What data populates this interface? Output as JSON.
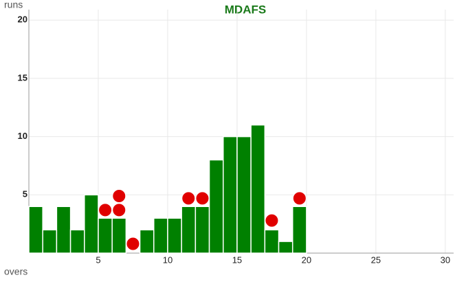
{
  "chart_data": {
    "type": "histogram",
    "title": "MDAFS",
    "y_label": "runs",
    "x_label": "overs",
    "bins": [
      0,
      1,
      2,
      3,
      4,
      5,
      6,
      7,
      8,
      9,
      10,
      11,
      12,
      13,
      14,
      15,
      16,
      17,
      18,
      19,
      20
    ],
    "values": [
      4,
      2,
      4,
      2,
      5,
      3,
      3,
      0,
      2,
      3,
      3,
      4,
      4,
      8,
      10,
      10,
      11,
      2,
      1,
      4
    ],
    "color": "#008000",
    "wickets": {
      "color": "#e00000",
      "x": [
        5.5,
        6.5,
        6.5,
        7.5,
        11.5,
        12.5,
        17.5,
        19.5
      ],
      "y": [
        3.7,
        4.9,
        3.7,
        0.8,
        4.7,
        4.7,
        2.8,
        4.7
      ]
    },
    "xlim": [
      0,
      30.6
    ],
    "ylim": [
      0,
      20.9
    ],
    "xticks": [
      5,
      10,
      15,
      20,
      25,
      30
    ],
    "yticks": [
      5,
      10,
      15,
      20
    ],
    "grid": true
  }
}
